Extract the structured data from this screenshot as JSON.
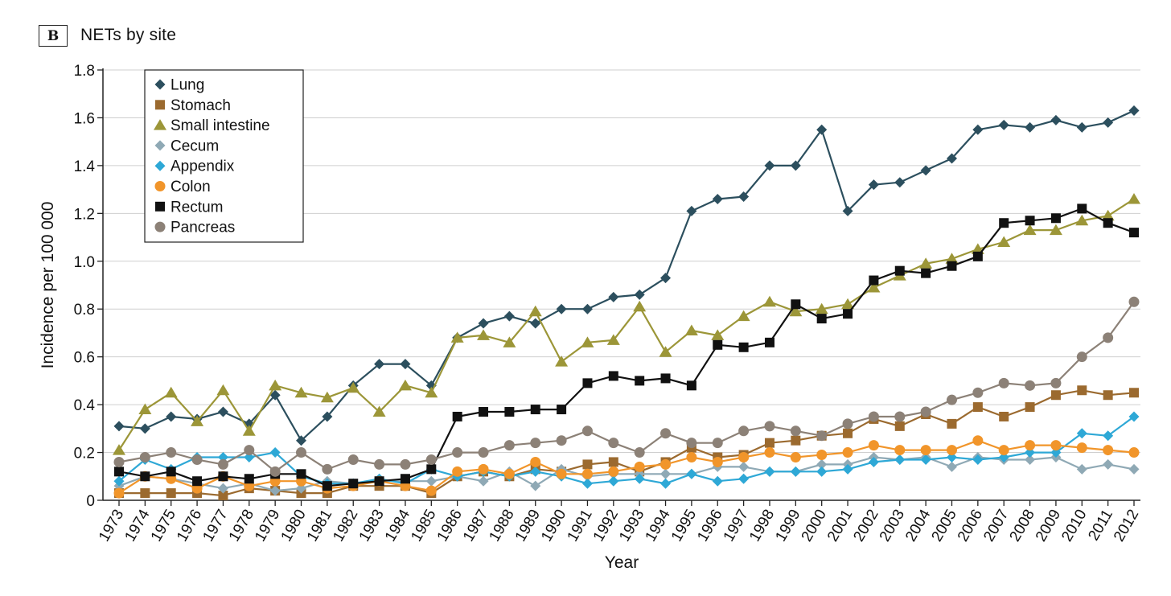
{
  "panel": {
    "tag": "B",
    "title": "NETs by site"
  },
  "chart_data": {
    "type": "line",
    "title": "NETs by site",
    "xlabel": "Year",
    "ylabel": "Incidence per 100 000",
    "ylim": [
      0,
      1.8
    ],
    "yticks": [
      0,
      0.2,
      0.4,
      0.6,
      0.8,
      1.0,
      1.2,
      1.4,
      1.6,
      1.8
    ],
    "ytick_labels": [
      "0",
      "0.2",
      "0.4",
      "0.6",
      "0.8",
      "1.0",
      "1.2",
      "1.4",
      "1.6",
      "1.8"
    ],
    "grid": "horizontal",
    "legend_position": "top-left",
    "x": [
      "1973",
      "1974",
      "1975",
      "1976",
      "1977",
      "1978",
      "1979",
      "1980",
      "1981",
      "1982",
      "1983",
      "1984",
      "1985",
      "1986",
      "1987",
      "1988",
      "1989",
      "1990",
      "1991",
      "1992",
      "1993",
      "1994",
      "1995",
      "1996",
      "1997",
      "1998",
      "1999",
      "2000",
      "2001",
      "2002",
      "2003",
      "2004",
      "2005",
      "2006",
      "2007",
      "2008",
      "2009",
      "2010",
      "2011",
      "2012"
    ],
    "series": [
      {
        "name": "Lung",
        "color": "#2c4f5e",
        "marker": "diamond",
        "values": [
          0.31,
          0.3,
          0.35,
          0.34,
          0.37,
          0.32,
          0.44,
          0.25,
          0.35,
          0.48,
          0.57,
          0.57,
          0.48,
          0.68,
          0.74,
          0.77,
          0.74,
          0.8,
          0.8,
          0.85,
          0.86,
          0.93,
          1.21,
          1.26,
          1.27,
          1.4,
          1.4,
          1.55,
          1.21,
          1.32,
          1.33,
          1.38,
          1.43,
          1.55,
          1.57,
          1.56,
          1.59,
          1.56,
          1.58,
          1.63
        ]
      },
      {
        "name": "Stomach",
        "color": "#9b6a2f",
        "marker": "square",
        "values": [
          0.03,
          0.03,
          0.03,
          0.03,
          0.02,
          0.05,
          0.04,
          0.03,
          0.03,
          0.06,
          0.06,
          0.06,
          0.03,
          0.1,
          0.12,
          0.1,
          0.13,
          0.12,
          0.15,
          0.16,
          0.12,
          0.16,
          0.22,
          0.18,
          0.19,
          0.24,
          0.25,
          0.27,
          0.28,
          0.34,
          0.31,
          0.36,
          0.32,
          0.39,
          0.35,
          0.39,
          0.44,
          0.46,
          0.44,
          0.45
        ]
      },
      {
        "name": "Small intestine",
        "color": "#9c9638",
        "marker": "triangle",
        "values": [
          0.21,
          0.38,
          0.45,
          0.33,
          0.46,
          0.29,
          0.48,
          0.45,
          0.43,
          0.47,
          0.37,
          0.48,
          0.45,
          0.68,
          0.69,
          0.66,
          0.79,
          0.58,
          0.66,
          0.67,
          0.81,
          0.62,
          0.71,
          0.69,
          0.77,
          0.83,
          0.79,
          0.8,
          0.82,
          0.89,
          0.94,
          0.99,
          1.01,
          1.05,
          1.08,
          1.13,
          1.13,
          1.17,
          1.19,
          1.26
        ]
      },
      {
        "name": "Cecum",
        "color": "#8fa9b5",
        "marker": "diamond",
        "values": [
          0.06,
          0.1,
          0.09,
          0.07,
          0.05,
          0.07,
          0.04,
          0.05,
          0.08,
          0.07,
          0.08,
          0.08,
          0.08,
          0.1,
          0.08,
          0.12,
          0.06,
          0.13,
          0.1,
          0.11,
          0.11,
          0.11,
          0.11,
          0.14,
          0.14,
          0.12,
          0.12,
          0.15,
          0.15,
          0.18,
          0.17,
          0.18,
          0.14,
          0.18,
          0.17,
          0.17,
          0.18,
          0.13,
          0.15,
          0.13
        ]
      },
      {
        "name": "Appendix",
        "color": "#2ea8d6",
        "marker": "diamond",
        "values": [
          0.08,
          0.17,
          0.13,
          0.18,
          0.18,
          0.18,
          0.2,
          0.1,
          0.07,
          0.07,
          0.09,
          0.07,
          0.13,
          0.1,
          0.12,
          0.1,
          0.12,
          0.1,
          0.07,
          0.08,
          0.09,
          0.07,
          0.11,
          0.08,
          0.09,
          0.12,
          0.12,
          0.12,
          0.13,
          0.16,
          0.17,
          0.17,
          0.18,
          0.17,
          0.18,
          0.2,
          0.2,
          0.28,
          0.27,
          0.35
        ]
      },
      {
        "name": "Colon",
        "color": "#f1952a",
        "marker": "circle",
        "values": [
          0.03,
          0.1,
          0.09,
          0.05,
          0.1,
          0.06,
          0.08,
          0.08,
          0.05,
          0.06,
          0.08,
          0.06,
          0.04,
          0.12,
          0.13,
          0.11,
          0.16,
          0.11,
          0.11,
          0.12,
          0.14,
          0.15,
          0.18,
          0.16,
          0.18,
          0.2,
          0.18,
          0.19,
          0.2,
          0.23,
          0.21,
          0.21,
          0.21,
          0.25,
          0.21,
          0.23,
          0.23,
          0.22,
          0.21,
          0.2
        ]
      },
      {
        "name": "Rectum",
        "color": "#111111",
        "marker": "square",
        "values": [
          0.12,
          0.1,
          0.12,
          0.08,
          0.1,
          0.09,
          0.11,
          0.11,
          0.06,
          0.07,
          0.08,
          0.09,
          0.13,
          0.35,
          0.37,
          0.37,
          0.38,
          0.38,
          0.49,
          0.52,
          0.5,
          0.51,
          0.48,
          0.65,
          0.64,
          0.66,
          0.82,
          0.76,
          0.78,
          0.92,
          0.96,
          0.95,
          0.98,
          1.02,
          1.16,
          1.17,
          1.18,
          1.22,
          1.16,
          1.12
        ]
      },
      {
        "name": "Pancreas",
        "color": "#8c8177",
        "marker": "circle",
        "values": [
          0.16,
          0.18,
          0.2,
          0.17,
          0.15,
          0.21,
          0.12,
          0.2,
          0.13,
          0.17,
          0.15,
          0.15,
          0.17,
          0.2,
          0.2,
          0.23,
          0.24,
          0.25,
          0.29,
          0.24,
          0.2,
          0.28,
          0.24,
          0.24,
          0.29,
          0.31,
          0.29,
          0.27,
          0.32,
          0.35,
          0.35,
          0.37,
          0.42,
          0.45,
          0.49,
          0.48,
          0.49,
          0.6,
          0.68,
          0.83
        ]
      }
    ]
  }
}
